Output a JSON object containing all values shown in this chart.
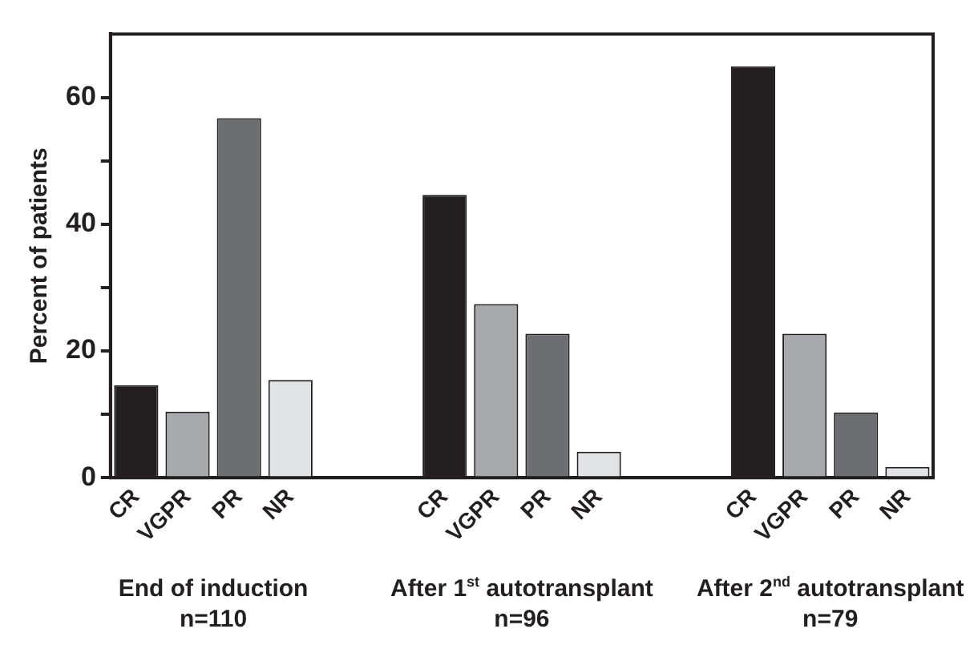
{
  "chart_data": {
    "type": "bar",
    "ylabel": "Percent of patients",
    "categories": [
      "CR",
      "VGPR",
      "PR",
      "NR",
      null,
      null,
      "CR",
      "VGPR",
      "PR",
      "NR",
      null,
      null,
      "CR",
      "VGPR",
      "PR",
      "NR"
    ],
    "values": [
      14.6,
      10.4,
      56.7,
      15.4,
      null,
      null,
      44.6,
      27.4,
      22.7,
      4.1,
      null,
      null,
      64.9,
      22.7,
      10.3,
      1.7
    ],
    "colors": [
      "#231f20",
      "#a7a9ac",
      "#6d6e71",
      "#e2e3e4",
      null,
      null,
      "#231f20",
      "#a7a9ac",
      "#6d6e71",
      "#e2e3e4",
      null,
      null,
      "#231f20",
      "#a7a9ac",
      "#6d6e71",
      "#e2e3e4"
    ],
    "ylim": [
      0,
      70
    ],
    "yticks": [
      0,
      {
        "value": 10,
        "label": null
      },
      20,
      {
        "value": 30,
        "label": null
      },
      40,
      {
        "value": 50,
        "label": null
      },
      60
    ],
    "grid": false,
    "legend": false,
    "annotations": [
      "End of induction\nn=110",
      "After 1$^{st}$ autotransplant\nn=96",
      "After 2$^{nd}$ autotransplant\nn=79"
    ]
  }
}
